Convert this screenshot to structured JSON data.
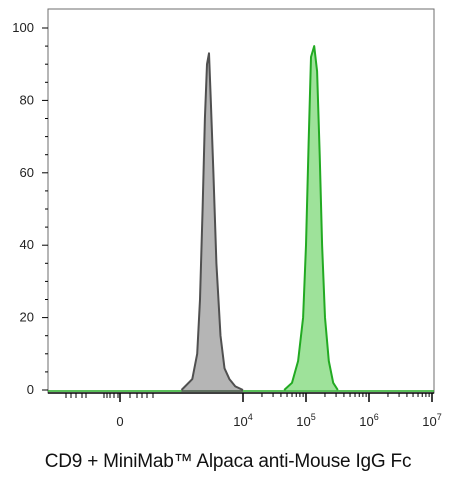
{
  "chart_data": {
    "type": "area",
    "title": "",
    "xlabel": "CD9 + MiniMab™ Alpaca anti-Mouse IgG Fc",
    "ylabel": "",
    "x_scale": "biexponential",
    "ylim": [
      0,
      105
    ],
    "yticks": [
      0,
      20,
      40,
      60,
      80,
      100
    ],
    "xticks": [
      {
        "value": 0,
        "base": "0",
        "exp": ""
      },
      {
        "value": 10000,
        "base": "10",
        "exp": "4"
      },
      {
        "value": 100000,
        "base": "10",
        "exp": "5"
      },
      {
        "value": 1000000,
        "base": "10",
        "exp": "6"
      },
      {
        "value": 10000000,
        "base": "10",
        "exp": "7"
      }
    ],
    "grid": false,
    "legend": "none",
    "series": [
      {
        "color_fill": "#b5b5b5",
        "color_line": "#505050",
        "x": [
          1000,
          1500,
          1800,
          2000,
          2200,
          2400,
          2600,
          2800,
          3000,
          3300,
          3700,
          4300,
          5000,
          6000,
          7500,
          10000
        ],
        "y": [
          0,
          3,
          10,
          25,
          50,
          75,
          90,
          93,
          80,
          60,
          35,
          15,
          6,
          3,
          1,
          0
        ]
      },
      {
        "color_fill": "#9ee29a",
        "color_line": "#22aa22",
        "x": [
          45000,
          60000,
          75000,
          90000,
          100000,
          110000,
          120000,
          135000,
          150000,
          165000,
          180000,
          200000,
          230000,
          270000,
          320000
        ],
        "y": [
          0,
          2,
          8,
          20,
          40,
          68,
          92,
          95,
          88,
          65,
          40,
          20,
          8,
          2,
          0
        ]
      }
    ]
  }
}
